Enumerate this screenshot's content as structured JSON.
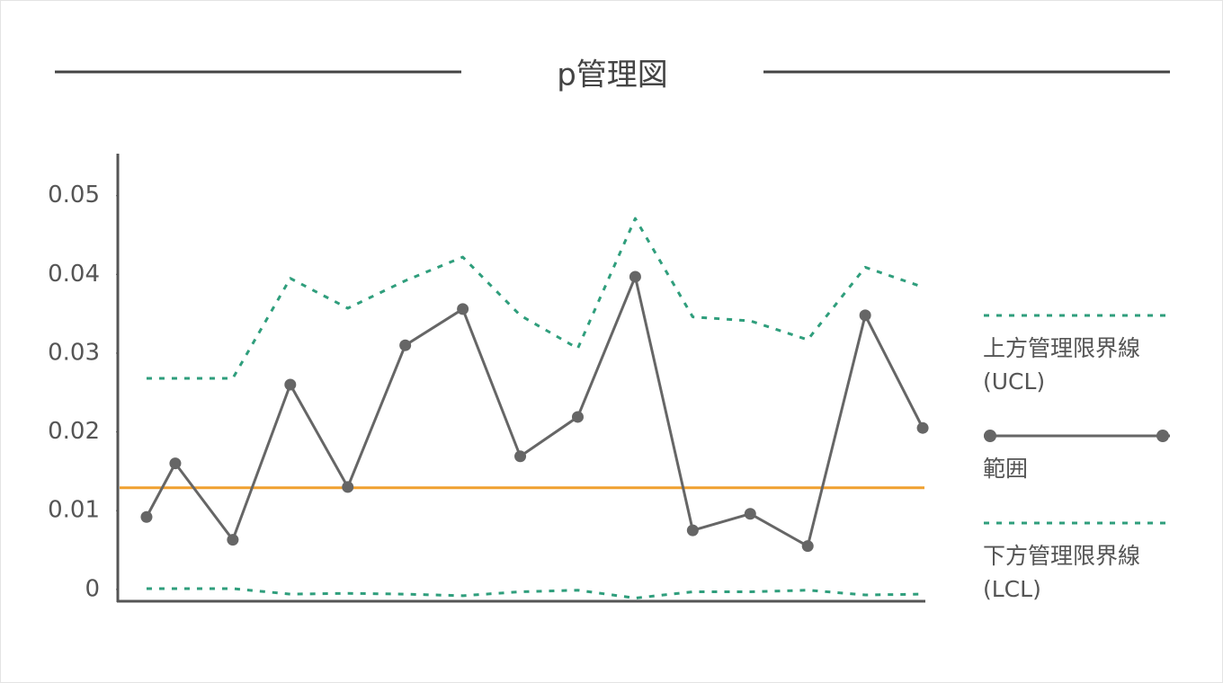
{
  "chart_data": {
    "type": "line",
    "title": "p管理図",
    "x": [
      -0.5,
      0,
      1,
      2,
      3,
      4,
      5,
      6,
      7,
      8,
      9,
      10,
      11,
      12,
      13
    ],
    "xlim": [
      -1,
      13.03
    ],
    "ylim": [
      -0.0015,
      0.0551
    ],
    "yticks": [
      0,
      0.01,
      0.02,
      0.03,
      0.04,
      0.05
    ],
    "grid": false,
    "center_line": {
      "value": 0.0129,
      "color": "#f0a030"
    },
    "series": [
      {
        "name": "上方管理限界線\n(UCL)",
        "color": "#2f9e7c",
        "style": "dotted",
        "values": [
          0.0268,
          0.0268,
          0.0268,
          0.0395,
          0.0357,
          0.0392,
          0.0422,
          0.0348,
          0.0306,
          0.0471,
          0.0346,
          0.0341,
          0.0317,
          0.0409,
          0.0384
        ]
      },
      {
        "name": "範囲",
        "color": "#666666",
        "style": "solid",
        "values": [
          0.0092,
          0.016,
          0.0063,
          0.026,
          0.013,
          0.031,
          0.0356,
          0.0169,
          0.0219,
          0.0397,
          0.0075,
          0.0096,
          0.0055,
          0.0348,
          0.0205
        ]
      },
      {
        "name": "下方管理限界線\n(LCL)",
        "color": "#2f9e7c",
        "style": "dotted",
        "values": [
          0.0001,
          0.0001,
          0.0001,
          -0.0006,
          -0.0005,
          -0.0006,
          -0.0008,
          -0.0003,
          -0.0001,
          -0.0011,
          -0.0003,
          -0.0003,
          -0.0001,
          -0.0007,
          -0.0006
        ]
      }
    ]
  }
}
